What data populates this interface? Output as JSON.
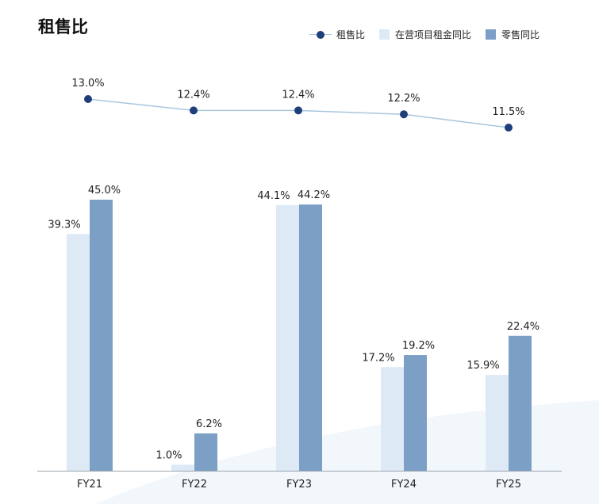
{
  "title": "租售比",
  "legend": {
    "line_label": "租售比",
    "bar1_label": "在营项目租金同比",
    "bar2_label": "零售同比"
  },
  "colors": {
    "line": "#a8c6de",
    "marker": "#1f3f7a",
    "bar1": "#dde9f5",
    "bar2": "#7c9fc6",
    "axis": "#9aa3ad"
  },
  "chart_data": {
    "type": "bar+line",
    "categories": [
      "FY21",
      "FY22",
      "FY23",
      "FY24",
      "FY25"
    ],
    "line": {
      "name": "租售比",
      "values": [
        13.0,
        12.4,
        12.4,
        12.2,
        11.5
      ],
      "labels": [
        "13.0%",
        "12.4%",
        "12.4%",
        "12.2%",
        "11.5%"
      ]
    },
    "series": [
      {
        "name": "在营项目租金同比",
        "values": [
          39.3,
          1.0,
          44.1,
          17.2,
          15.9
        ],
        "labels": [
          "39.3%",
          "1.0%",
          "44.1%",
          "17.2%",
          "15.9%"
        ]
      },
      {
        "name": "零售同比",
        "values": [
          45.0,
          6.2,
          44.2,
          19.2,
          22.4
        ],
        "labels": [
          "45.0%",
          "6.2%",
          "44.2%",
          "19.2%",
          "22.4%"
        ]
      }
    ],
    "bar_ylim": [
      0,
      50
    ],
    "line_ylim": [
      11,
      14
    ],
    "grid": false,
    "legend_position": "top-right"
  }
}
